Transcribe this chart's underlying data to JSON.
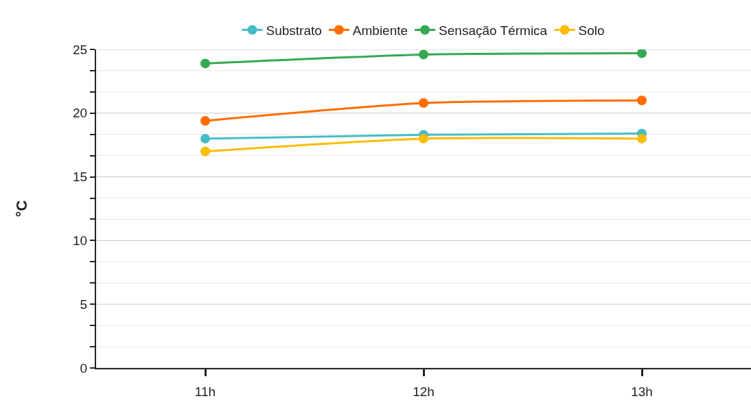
{
  "chart_data": {
    "type": "line",
    "ylabel": "°C",
    "categories": [
      "11h",
      "12h",
      "13h"
    ],
    "series": [
      {
        "name": "Substrato",
        "color": "#46bdc6",
        "values": [
          18.0,
          18.3,
          18.4
        ]
      },
      {
        "name": "Ambiente",
        "color": "#ff6d01",
        "values": [
          19.4,
          20.8,
          21.0
        ]
      },
      {
        "name": "Sensação Térmica",
        "color": "#34a853",
        "values": [
          23.9,
          24.6,
          24.7
        ]
      },
      {
        "name": "Solo",
        "color": "#fbbc04",
        "values": [
          17.0,
          18.0,
          18.0
        ]
      }
    ],
    "ylim": [
      0,
      25
    ],
    "yticks": [
      0,
      {
        "value": 1.667,
        "label": null
      },
      {
        "value": 3.333,
        "label": null
      },
      5,
      {
        "value": 6.667,
        "label": null
      },
      {
        "value": 8.333,
        "label": null
      },
      10,
      {
        "value": 11.667,
        "label": null
      },
      {
        "value": 13.333,
        "label": null
      },
      15,
      {
        "value": 16.667,
        "label": null
      },
      {
        "value": 18.333,
        "label": null
      },
      20,
      {
        "value": 21.667,
        "label": null
      },
      {
        "value": 23.333,
        "label": null
      },
      25
    ],
    "grid": true,
    "legend": "top",
    "marker": "circle",
    "line_style": "solid"
  }
}
